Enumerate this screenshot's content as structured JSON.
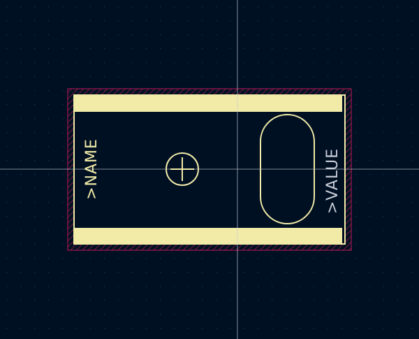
{
  "footprint": {
    "name_label": ">NAME",
    "value_label": ">VALUE"
  },
  "colors": {
    "background": "#001023",
    "grid_dot": "#2a3550",
    "crosshair": "#c8ccd6",
    "courtyard": "#c2185b",
    "courtyard_hatch": "#7a1a3a",
    "silkscreen": "#f2eba8",
    "outline": "#f2eba8",
    "name_text": "#f2eba8",
    "value_text": "#c8ccd6"
  },
  "icons": {
    "anchor": "crosshair-circle-icon"
  }
}
